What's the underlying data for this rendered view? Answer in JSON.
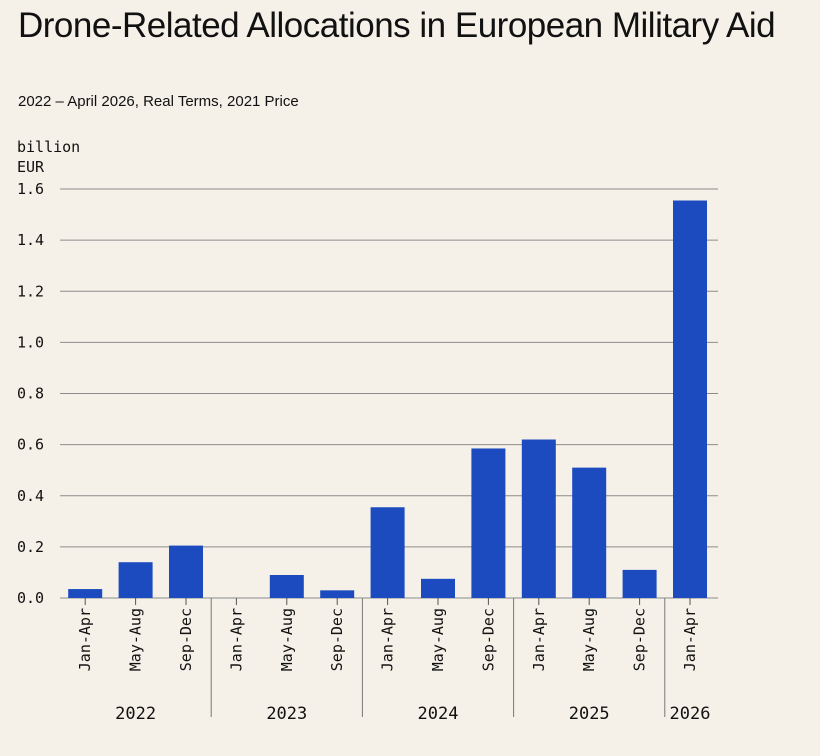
{
  "header": {
    "title": "Drone-Related Allocations in European Military Aid",
    "subtitle": "2022 – April 2026, Real Terms, 2021 Price"
  },
  "chart_data": {
    "type": "bar",
    "title": "Drone-Related Allocations in European Military Aid",
    "subtitle": "2022 – April 2026, Real Terms, 2021 Price",
    "ylabel": [
      "billion",
      "EUR"
    ],
    "xlabel": "",
    "ylim": [
      0,
      1.6
    ],
    "yticks": [
      "0.0",
      "0.2",
      "0.4",
      "0.6",
      "0.8",
      "1.0",
      "1.2",
      "1.4",
      "1.6"
    ],
    "categories": [
      "Jan-Apr",
      "May-Aug",
      "Sep-Dec",
      "Jan-Apr",
      "May-Aug",
      "Sep-Dec",
      "Jan-Apr",
      "May-Aug",
      "Sep-Dec",
      "Jan-Apr",
      "May-Aug",
      "Sep-Dec",
      "Jan-Apr"
    ],
    "groups": [
      {
        "label": "2022",
        "count": 3
      },
      {
        "label": "2023",
        "count": 3
      },
      {
        "label": "2024",
        "count": 3
      },
      {
        "label": "2025",
        "count": 3
      },
      {
        "label": "2026",
        "count": 1
      }
    ],
    "values": [
      0.035,
      0.14,
      0.205,
      0.0,
      0.09,
      0.03,
      0.355,
      0.075,
      0.585,
      0.62,
      0.51,
      0.11,
      1.555
    ],
    "grid": true,
    "legend": "none",
    "bar_color": "#1b4bbf",
    "grid_color": "#8c8c8c"
  }
}
